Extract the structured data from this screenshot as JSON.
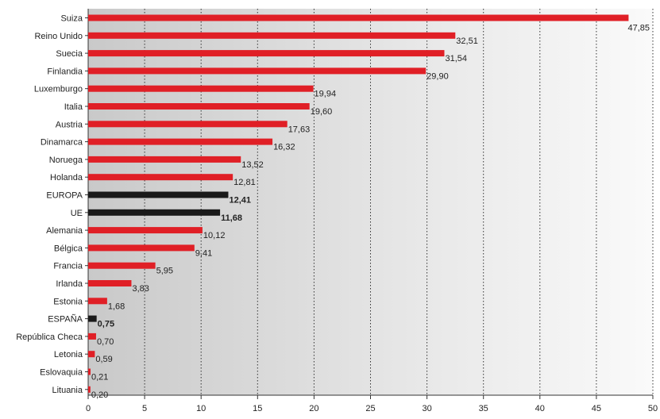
{
  "chart_data": {
    "type": "bar",
    "orientation": "horizontal",
    "title": "",
    "xlabel": "",
    "ylabel": "",
    "xlim": [
      0,
      50
    ],
    "x_ticks": [
      0,
      5,
      10,
      15,
      20,
      25,
      30,
      35,
      40,
      45,
      50
    ],
    "x_tick_labels": [
      "0",
      "5",
      "10",
      "15",
      "20",
      "25",
      "30",
      "35",
      "40",
      "45",
      "50"
    ],
    "grid": "vertical dotted gridlines",
    "background": "grey-to-white horizontal gradient",
    "colors": {
      "default_bar": "#e01f26",
      "highlight_bar": "#1a1a1a",
      "label_text": "#222222"
    },
    "categories": [
      "Suiza",
      "Reino Unido",
      "Suecia",
      "Finlandia",
      "Luxemburgo",
      "Italia",
      "Austria",
      "Dinamarca",
      "Noruega",
      "Holanda",
      "EUROPA",
      "UE",
      "Alemania",
      "Bélgica",
      "Francia",
      "Irlanda",
      "Estonia",
      "ESPAÑA",
      "República Checa",
      "Letonia",
      "Eslovaquia",
      "Lituania"
    ],
    "values": [
      47.85,
      32.51,
      31.54,
      29.9,
      19.94,
      19.6,
      17.63,
      16.32,
      13.52,
      12.81,
      12.41,
      11.68,
      10.12,
      9.41,
      5.95,
      3.83,
      1.68,
      0.75,
      0.7,
      0.59,
      0.21,
      0.2
    ],
    "value_labels": [
      "47,85",
      "32,51",
      "31,54",
      "29,90",
      "19,94",
      "19,60",
      "17,63",
      "16,32",
      "13,52",
      "12,81",
      "12,41",
      "11,68",
      "10,12",
      "9,41",
      "5,95",
      "3,83",
      "1,68",
      "0,75",
      "0,70",
      "0,59",
      "0,21",
      "0,20"
    ],
    "highlighted": [
      "EUROPA",
      "UE",
      "ESPAÑA"
    ]
  }
}
